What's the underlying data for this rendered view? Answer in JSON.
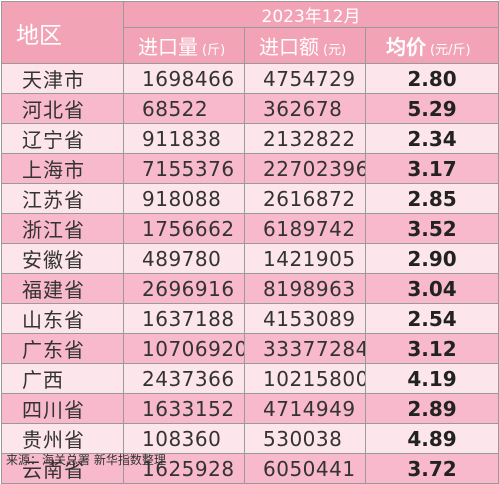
{
  "header": {
    "region_label": "地区",
    "month_label": "2023年12月",
    "col_qty": "进口量",
    "col_qty_unit": "(斤)",
    "col_amount": "进口额",
    "col_amount_unit": "(元)",
    "col_price": "均价",
    "col_price_unit": "(元/斤)"
  },
  "rows": [
    {
      "region": "天津市",
      "qty": "1698466",
      "amount": "4754729",
      "price": "2.80"
    },
    {
      "region": "河北省",
      "qty": "68522",
      "amount": "362678",
      "price": "5.29"
    },
    {
      "region": "辽宁省",
      "qty": "911838",
      "amount": "2132822",
      "price": "2.34"
    },
    {
      "region": "上海市",
      "qty": "7155376",
      "amount": "22702396",
      "price": "3.17"
    },
    {
      "region": "江苏省",
      "qty": "918088",
      "amount": "2616872",
      "price": "2.85"
    },
    {
      "region": "浙江省",
      "qty": "1756662",
      "amount": "6189742",
      "price": "3.52"
    },
    {
      "region": "安徽省",
      "qty": "489780",
      "amount": "1421905",
      "price": "2.90"
    },
    {
      "region": "福建省",
      "qty": "2696916",
      "amount": "8198963",
      "price": "3.04"
    },
    {
      "region": "山东省",
      "qty": "1637188",
      "amount": "4153089",
      "price": "2.54"
    },
    {
      "region": "广东省",
      "qty": "10706920",
      "amount": "33377284",
      "price": "3.12"
    },
    {
      "region": "广西",
      "qty": "2437366",
      "amount": "10215800",
      "price": "4.19"
    },
    {
      "region": "四川省",
      "qty": "1633152",
      "amount": "4714949",
      "price": "2.89"
    },
    {
      "region": "贵州省",
      "qty": "108360",
      "amount": "530038",
      "price": "4.89"
    },
    {
      "region": "云南省",
      "qty": "1625928",
      "amount": "6050441",
      "price": "3.72"
    }
  ],
  "source": "来源：海关总署 新华指数整理",
  "colors": {
    "header_bg": "#f2a4b6",
    "row_light": "#fce6ec",
    "row_pink": "#f7b9cb"
  }
}
